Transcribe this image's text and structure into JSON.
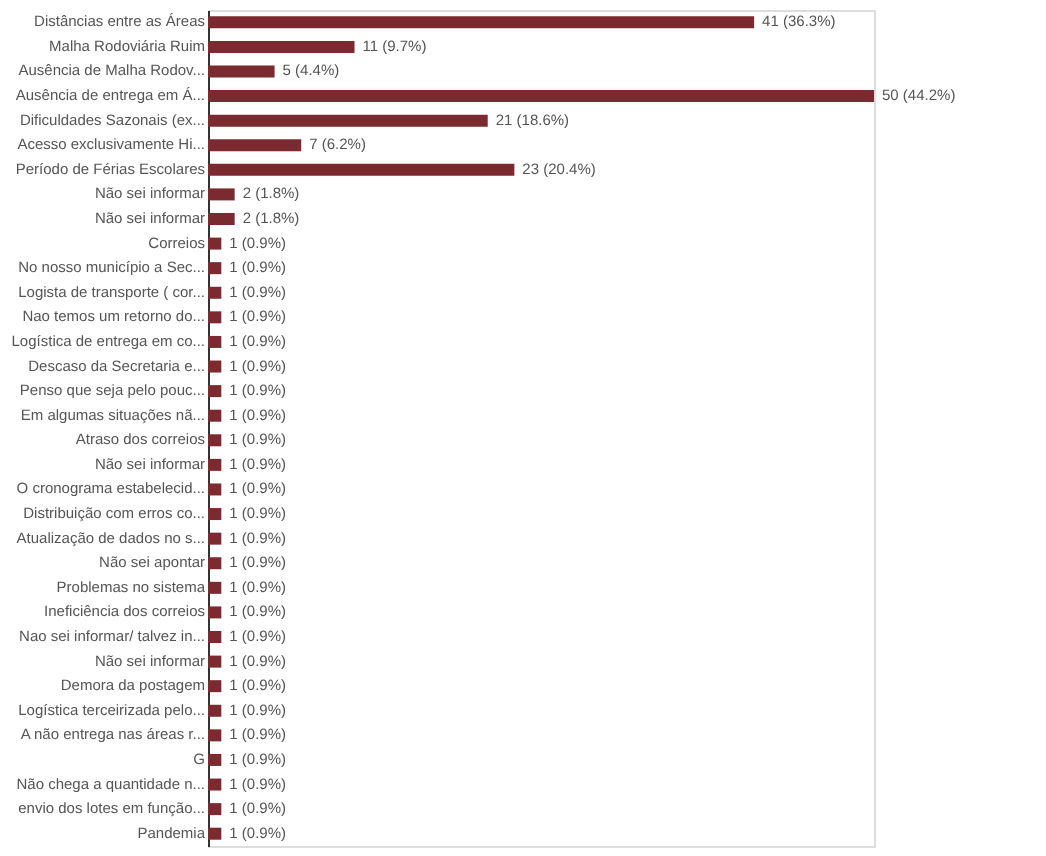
{
  "chart_data": {
    "type": "bar",
    "orientation": "horizontal",
    "color": "#7b2a30",
    "categories": [
      "Distâncias entre as Áreas",
      "Malha Rodoviária Ruim",
      "Ausência de Malha Rodov...",
      "Ausência de entrega em Á...",
      "Dificuldades Sazonais (ex...",
      "Acesso exclusivamente Hi...",
      "Período de Férias Escolares",
      "Não sei informar",
      "Não sei informar",
      "Correios",
      "No nosso município a Sec...",
      "Logista de transporte ( cor...",
      "Nao temos um retorno do...",
      "Logística de entrega em co...",
      "Descaso da Secretaria e...",
      "Penso que seja pelo pouc...",
      "Em algumas situações nã...",
      "Atraso dos correios",
      "Não sei informar",
      "O cronograma estabelecid...",
      "Distribuição com erros co...",
      "Atualização de dados no s...",
      "Não sei apontar",
      "Problemas no sistema",
      "Ineficiência dos correios",
      "Nao sei informar/ talvez in...",
      "Não sei informar",
      "Demora da postagem",
      "Logística terceirizada pelo...",
      "A não entrega nas áreas r...",
      "G",
      "Não chega a quantidade n...",
      "envio dos lotes em função...",
      "Pandemia"
    ],
    "values": [
      41,
      11,
      5,
      50,
      21,
      7,
      23,
      2,
      2,
      1,
      1,
      1,
      1,
      1,
      1,
      1,
      1,
      1,
      1,
      1,
      1,
      1,
      1,
      1,
      1,
      1,
      1,
      1,
      1,
      1,
      1,
      1,
      1,
      1
    ],
    "value_labels": [
      "41 (36.3%)",
      "11 (9.7%)",
      "5 (4.4%)",
      "50 (44.2%)",
      "21 (18.6%)",
      "7 (6.2%)",
      "23 (20.4%)",
      "2 (1.8%)",
      "2 (1.8%)",
      "1 (0.9%)",
      "1 (0.9%)",
      "1 (0.9%)",
      "1 (0.9%)",
      "1 (0.9%)",
      "1 (0.9%)",
      "1 (0.9%)",
      "1 (0.9%)",
      "1 (0.9%)",
      "1 (0.9%)",
      "1 (0.9%)",
      "1 (0.9%)",
      "1 (0.9%)",
      "1 (0.9%)",
      "1 (0.9%)",
      "1 (0.9%)",
      "1 (0.9%)",
      "1 (0.9%)",
      "1 (0.9%)",
      "1 (0.9%)",
      "1 (0.9%)",
      "1 (0.9%)",
      "1 (0.9%)",
      "1 (0.9%)",
      "1 (0.9%)"
    ],
    "tick_labels": "y"
  }
}
